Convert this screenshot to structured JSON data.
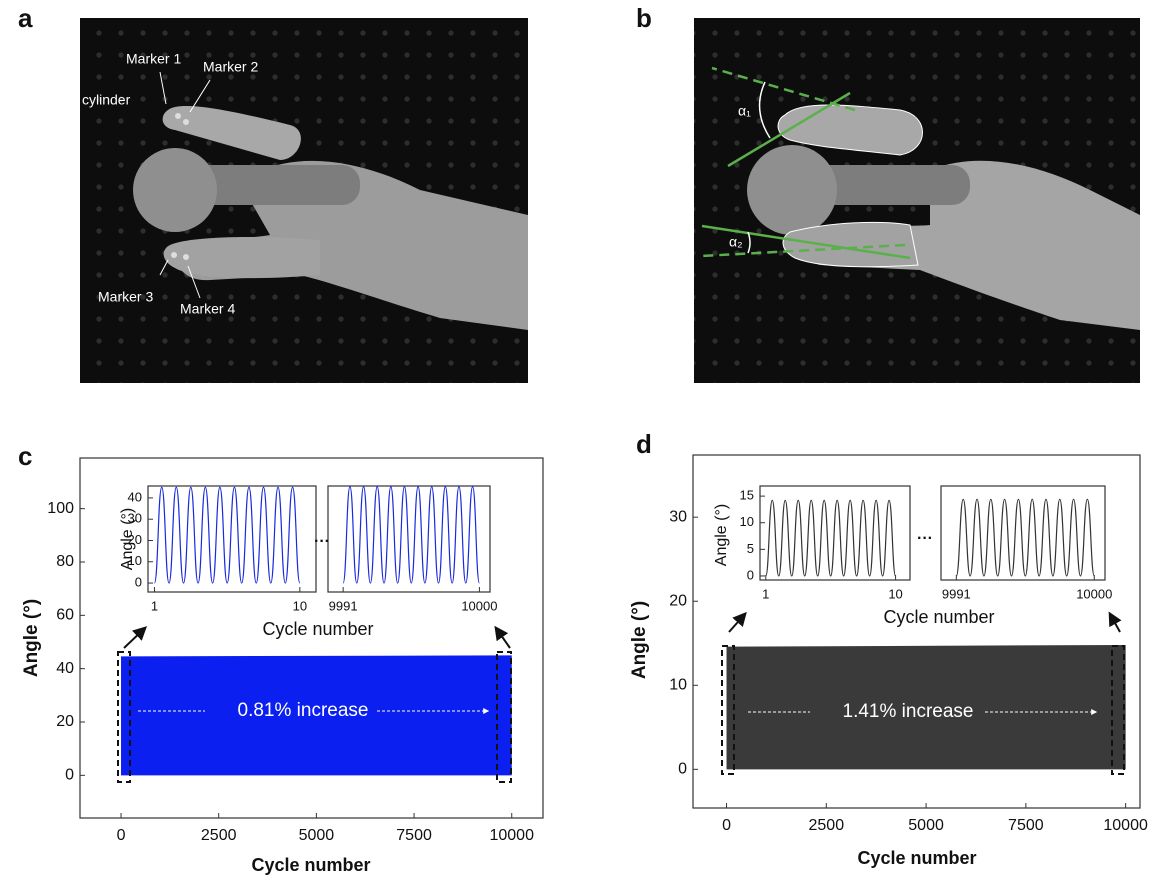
{
  "figure": {
    "photos": [
      {
        "label": "a",
        "texts": [
          "Marker 1",
          "Marker 2",
          "cylinder",
          "Marker 3",
          "Marker 4"
        ]
      },
      {
        "label": "b",
        "texts": [
          "α₁",
          "α₂"
        ]
      }
    ]
  },
  "chart_data": [
    {
      "type": "area",
      "panel_label": "c",
      "xlabel": "Cycle number",
      "ylabel": "Angle (°)",
      "xlim": [
        -1050,
        10800
      ],
      "ylim": [
        -16,
        119
      ],
      "xticks": [
        0,
        2500,
        5000,
        7500,
        10000
      ],
      "yticks": [
        0,
        20,
        40,
        60,
        80,
        100
      ],
      "color": "#0a1ff0",
      "x": [
        0,
        10000
      ],
      "upper": [
        44.6,
        45.0
      ],
      "lower": [
        0,
        0
      ],
      "annotation": "0.81% increase",
      "inset_xlabel": "Cycle number",
      "inset_ylabel": "Angle (°)",
      "ellipsis": "···",
      "insets": [
        {
          "xlim": [
            0.6,
            11
          ],
          "ylim": [
            -4.2,
            45.6
          ],
          "xticks": [
            1,
            10
          ],
          "yticks": [
            0,
            10,
            20,
            30,
            40
          ],
          "color": "#1a2bdd",
          "x": [
            1,
            1.45,
            1.9,
            2.35,
            2.8,
            3.25,
            3.7,
            4.15,
            4.6,
            5.05,
            5.5,
            5.95,
            6.4,
            6.85,
            7.3,
            7.75,
            8.2,
            8.65,
            9.1,
            9.55,
            10
          ],
          "values": [
            0,
            45,
            0,
            45,
            0,
            45,
            0,
            45,
            0,
            45,
            0,
            45,
            0,
            45,
            0,
            45,
            0,
            45,
            0,
            45,
            0
          ]
        },
        {
          "xlim": [
            9990,
            10000.7
          ],
          "ylim": [
            -4.2,
            45.6
          ],
          "xticks": [
            9991,
            10000
          ],
          "color": "#1a2bdd",
          "x": [
            9991,
            9991.45,
            9991.9,
            9992.35,
            9992.8,
            9993.25,
            9993.7,
            9994.15,
            9994.6,
            9995.05,
            9995.5,
            9995.95,
            9996.4,
            9996.85,
            9997.3,
            9997.75,
            9998.2,
            9998.65,
            9999.1,
            9999.55,
            10000
          ],
          "values": [
            0,
            45.3,
            0,
            45.3,
            0,
            45.3,
            0,
            45.3,
            0,
            45.3,
            0,
            45.3,
            0,
            45.3,
            0,
            45.3,
            0,
            45.3,
            0,
            45.3,
            0
          ]
        }
      ]
    },
    {
      "type": "area",
      "panel_label": "d",
      "xlabel": "Cycle number",
      "ylabel": "Angle (°)",
      "xlim": [
        -840,
        10360
      ],
      "ylim": [
        -4.6,
        37.4
      ],
      "xticks": [
        0,
        2500,
        5000,
        7500,
        10000
      ],
      "yticks": [
        0,
        10,
        20,
        30
      ],
      "color": "#3a3a3a",
      "x": [
        0,
        10000
      ],
      "upper": [
        14.6,
        14.8
      ],
      "lower": [
        0,
        0
      ],
      "annotation": "1.41% increase",
      "inset_xlabel": "Cycle number",
      "inset_ylabel": "Angle (°)",
      "ellipsis": "···",
      "insets": [
        {
          "xlim": [
            0.6,
            11
          ],
          "ylim": [
            -0.76,
            16.9
          ],
          "xticks": [
            1,
            10
          ],
          "yticks": [
            0,
            5,
            10,
            15
          ],
          "color": "#333333",
          "x": [
            1,
            1.45,
            1.9,
            2.35,
            2.8,
            3.25,
            3.7,
            4.15,
            4.6,
            5.05,
            5.5,
            5.95,
            6.4,
            6.85,
            7.3,
            7.75,
            8.2,
            8.65,
            9.1,
            9.55,
            10
          ],
          "values": [
            0,
            14.2,
            0,
            14.2,
            0,
            14.2,
            0,
            14.2,
            0,
            14.2,
            0,
            14.2,
            0,
            14.2,
            0,
            14.2,
            0,
            14.2,
            0,
            14.2,
            0
          ]
        },
        {
          "xlim": [
            9990,
            10000.7
          ],
          "ylim": [
            -0.76,
            16.9
          ],
          "xticks": [
            9991,
            10000
          ],
          "color": "#333333",
          "x": [
            9991,
            9991.45,
            9991.9,
            9992.35,
            9992.8,
            9993.25,
            9993.7,
            9994.15,
            9994.6,
            9995.05,
            9995.5,
            9995.95,
            9996.4,
            9996.85,
            9997.3,
            9997.75,
            9998.2,
            9998.65,
            9999.1,
            9999.55,
            10000
          ],
          "values": [
            0,
            14.4,
            0,
            14.4,
            0,
            14.4,
            0,
            14.4,
            0,
            14.4,
            0,
            14.4,
            0,
            14.4,
            0,
            14.4,
            0,
            14.4,
            0,
            14.4,
            0
          ]
        }
      ]
    }
  ]
}
